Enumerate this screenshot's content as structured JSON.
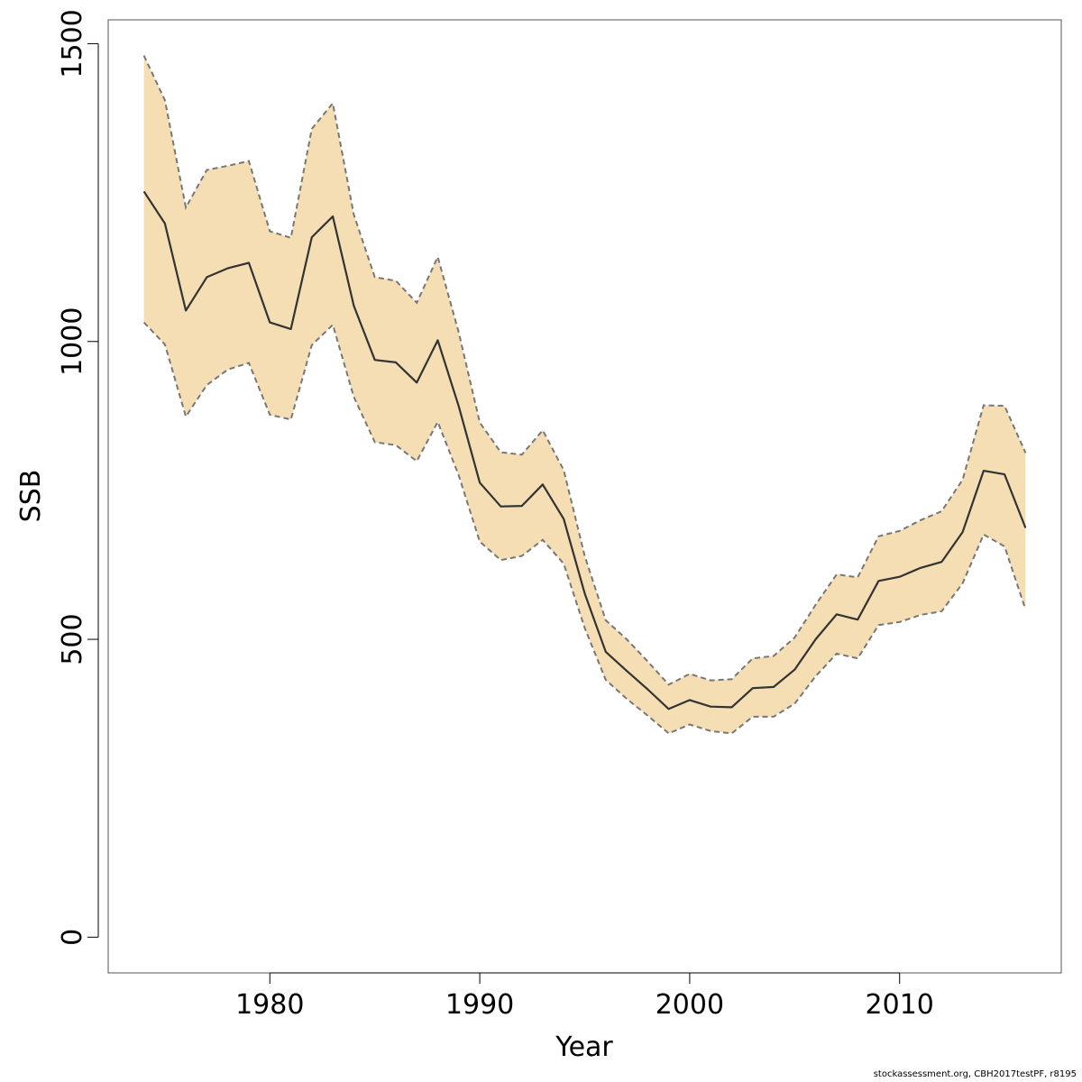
{
  "chart_data": {
    "type": "line",
    "xlabel": "Year",
    "ylabel": "SSB",
    "xlim": [
      1972.3,
      2017.7
    ],
    "ylim": [
      -60,
      1540
    ],
    "xticks": [
      1980,
      1990,
      2000,
      2010
    ],
    "yticks": [
      0,
      500,
      1000,
      1500
    ],
    "grid": false,
    "band_color": "#F5DEB3",
    "line_color": "#333333",
    "bound_color": "#777777",
    "x": [
      1974,
      1975,
      1976,
      1977,
      1978,
      1979,
      1980,
      1981,
      1982,
      1983,
      1984,
      1985,
      1986,
      1987,
      1988,
      1989,
      1990,
      1991,
      1992,
      1993,
      1994,
      1995,
      1996,
      1997,
      1998,
      1999,
      2000,
      2001,
      2002,
      2003,
      2004,
      2005,
      2006,
      2007,
      2008,
      2009,
      2010,
      2011,
      2012,
      2013,
      2014,
      2015,
      2016
    ],
    "series": [
      {
        "role": "estimate",
        "values": [
          1252,
          1198,
          1052,
          1108,
          1123,
          1132,
          1032,
          1021,
          1175,
          1210,
          1060,
          969,
          965,
          931,
          1002,
          891,
          763,
          723,
          724,
          760,
          702,
          577,
          479,
          447,
          416,
          383,
          398,
          387,
          386,
          418,
          420,
          449,
          500,
          542,
          533,
          598,
          605,
          620,
          630,
          680,
          783,
          777,
          687
        ]
      },
      {
        "role": "upper",
        "values": [
          1480,
          1405,
          1225,
          1288,
          1295,
          1303,
          1185,
          1174,
          1357,
          1400,
          1213,
          1108,
          1102,
          1065,
          1142,
          1015,
          864,
          814,
          810,
          851,
          784,
          640,
          532,
          500,
          463,
          424,
          442,
          431,
          433,
          468,
          472,
          503,
          558,
          609,
          604,
          673,
          682,
          700,
          715,
          768,
          893,
          892,
          813
        ]
      },
      {
        "role": "lower",
        "values": [
          1032,
          995,
          874,
          927,
          953,
          964,
          877,
          869,
          994,
          1028,
          907,
          831,
          826,
          799,
          865,
          775,
          664,
          633,
          640,
          667,
          627,
          519,
          432,
          400,
          372,
          342,
          357,
          346,
          342,
          370,
          370,
          392,
          438,
          476,
          468,
          524,
          529,
          541,
          547,
          594,
          676,
          656,
          550
        ]
      }
    ]
  },
  "footer": {
    "credit": "stockassessment.org, CBH2017testPF, r8195"
  }
}
